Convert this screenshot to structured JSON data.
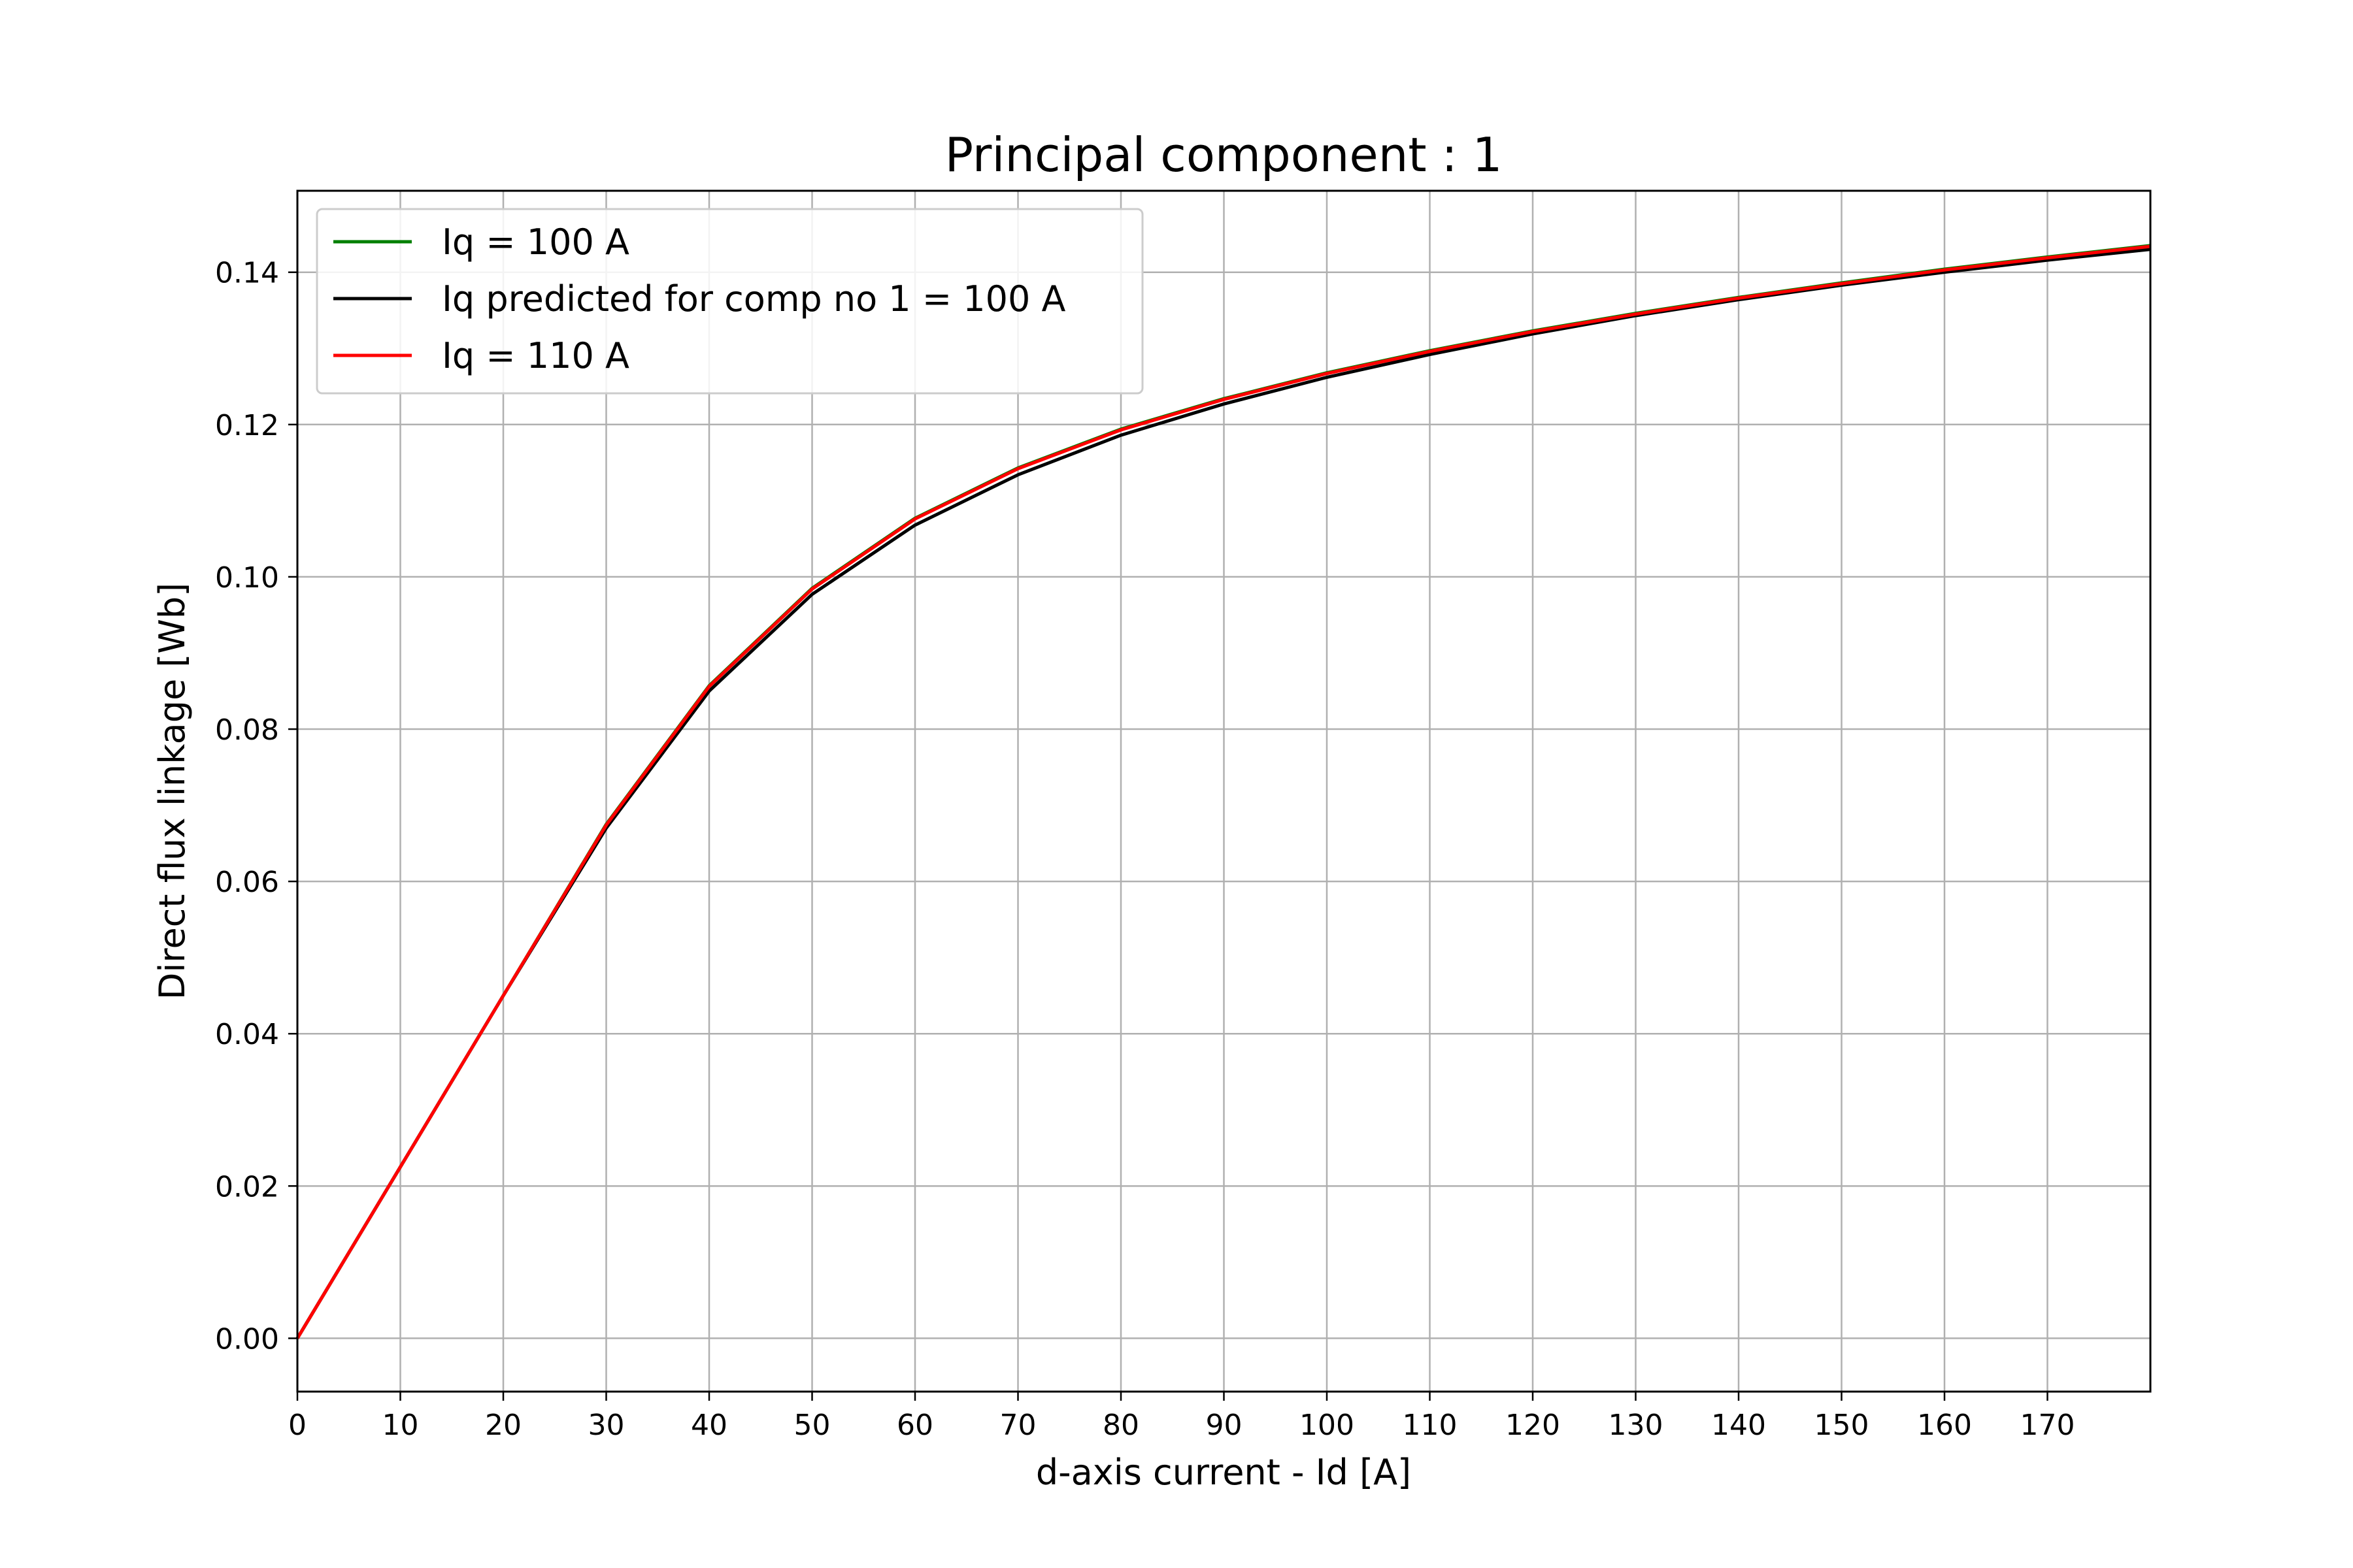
{
  "chart_data": {
    "type": "line",
    "title": "Principal component : 1",
    "xlabel": "d-axis current - Id [A]",
    "ylabel": "Direct flux linkage [Wb]",
    "xlim": [
      0,
      180
    ],
    "ylim": [
      -0.007,
      0.1507
    ],
    "xticks": [
      0,
      10,
      20,
      30,
      40,
      50,
      60,
      70,
      80,
      90,
      100,
      110,
      120,
      130,
      140,
      150,
      160,
      170
    ],
    "yticks": [
      0.0,
      0.02,
      0.04,
      0.06,
      0.08,
      0.1,
      0.12,
      0.14
    ],
    "ytick_labels": [
      "0.00",
      "0.02",
      "0.04",
      "0.06",
      "0.08",
      "0.10",
      "0.12",
      "0.14"
    ],
    "grid": true,
    "legend_position": "top-left",
    "x": [
      0,
      10,
      20,
      30,
      40,
      50,
      60,
      70,
      80,
      90,
      100,
      110,
      120,
      130,
      140,
      150,
      160,
      170,
      180
    ],
    "series": [
      {
        "name": "Iq = 100 A",
        "color": "#007f00",
        "values": [
          0,
          0.0225,
          0.045,
          0.0675,
          0.0857,
          0.0985,
          0.1077,
          0.1143,
          0.1194,
          0.1234,
          0.1268,
          0.1297,
          0.1323,
          0.1346,
          0.1367,
          0.1386,
          0.1404,
          0.142,
          0.1435
        ]
      },
      {
        "name": "Iq predicted for comp no 1 = 100 A",
        "color": "#000000",
        "values": [
          0,
          0.0225,
          0.045,
          0.067,
          0.085,
          0.0977,
          0.1068,
          0.1134,
          0.1186,
          0.1227,
          0.1262,
          0.1292,
          0.1319,
          0.1343,
          0.1364,
          0.1383,
          0.14,
          0.1416,
          0.143
        ]
      },
      {
        "name": "Iq = 110 A",
        "color": "#ff0000",
        "values": [
          0,
          0.0225,
          0.045,
          0.0674,
          0.0856,
          0.0984,
          0.1076,
          0.1142,
          0.1193,
          0.1233,
          0.1267,
          0.1296,
          0.1322,
          0.1345,
          0.1366,
          0.1385,
          0.1403,
          0.1419,
          0.1434
        ]
      }
    ]
  }
}
